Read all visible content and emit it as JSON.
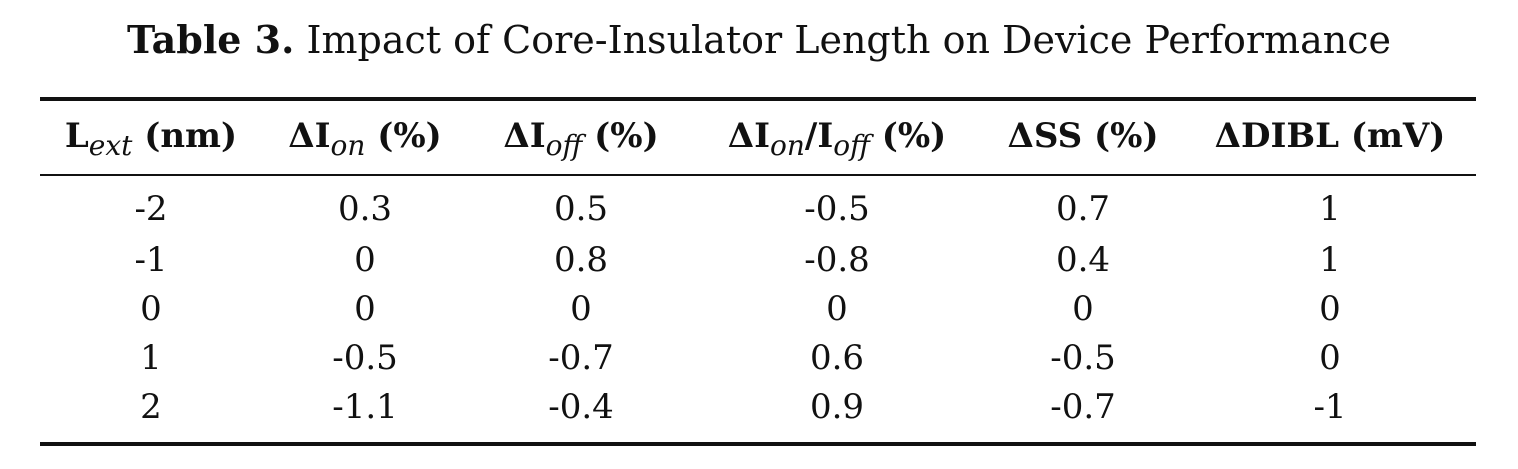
{
  "caption": {
    "label": "Table 3.",
    "text": "Impact of Core-Insulator Length on Device Performance"
  },
  "table": {
    "headers": [
      {
        "pre": "L",
        "sub": "ext",
        "post": " (nm)"
      },
      {
        "pre": "ΔI",
        "sub": "on",
        "post": " (%)"
      },
      {
        "pre": "ΔI",
        "sub": "off",
        "post": " (%)"
      },
      {
        "pre": "ΔI",
        "sub": "on",
        "mid": "/I",
        "sub2": "off",
        "post": " (%)"
      },
      {
        "pre": "ΔSS (%)"
      },
      {
        "pre": "ΔDIBL (mV)"
      }
    ],
    "rows": [
      [
        "-2",
        "0.3",
        "0.5",
        "-0.5",
        "0.7",
        "1"
      ],
      [
        "-1",
        "0",
        "0.8",
        "-0.8",
        "0.4",
        "1"
      ],
      [
        "0",
        "0",
        "0",
        "0",
        "0",
        "0"
      ],
      [
        "1",
        "-0.5",
        "-0.7",
        "0.6",
        "-0.5",
        "0"
      ],
      [
        "2",
        "-1.1",
        "-0.4",
        "0.9",
        "-0.7",
        "-1"
      ]
    ]
  }
}
